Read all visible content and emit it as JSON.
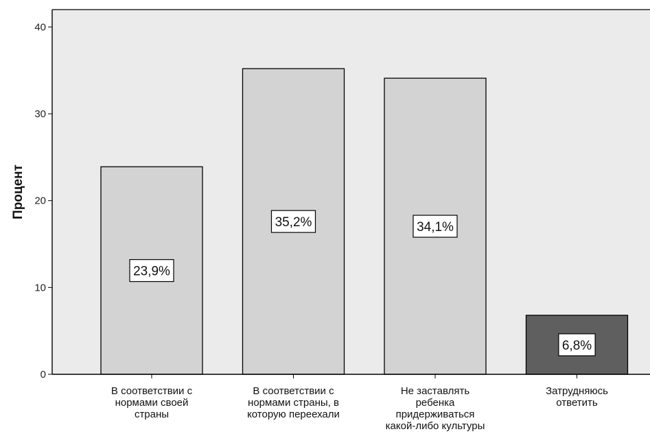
{
  "chart_data": {
    "type": "bar",
    "categories": [
      "В соответствии с нормами своей страны",
      "В соответствии с нормами страны, в которую переехали",
      "Не заставлять ребенка придерживаться какой-либо культуры",
      "Затрудняюсь ответить"
    ],
    "category_label_lines": [
      [
        "В соответствии с",
        "нормами своей",
        "страны"
      ],
      [
        "В соответствии с",
        "нормами страны, в",
        "которую переехали"
      ],
      [
        "Не заставлять",
        "ребенка",
        "придерживаться",
        "какой-либо культуры"
      ],
      [
        "Затрудняюсь",
        "ответить"
      ]
    ],
    "values": [
      23.9,
      35.2,
      34.1,
      6.8
    ],
    "data_labels": [
      "23,9%",
      "35,2%",
      "34,1%",
      "6,8%"
    ],
    "bar_colors": [
      "#d3d3d3",
      "#d3d3d3",
      "#d3d3d3",
      "#5f5f5f"
    ],
    "plot_background": "#ebebeb",
    "xlabel": "",
    "ylabel": "Процент",
    "ylim": [
      0,
      42
    ],
    "yticks": [
      0,
      10,
      20,
      30,
      40
    ],
    "grid": false,
    "legend": "none"
  }
}
